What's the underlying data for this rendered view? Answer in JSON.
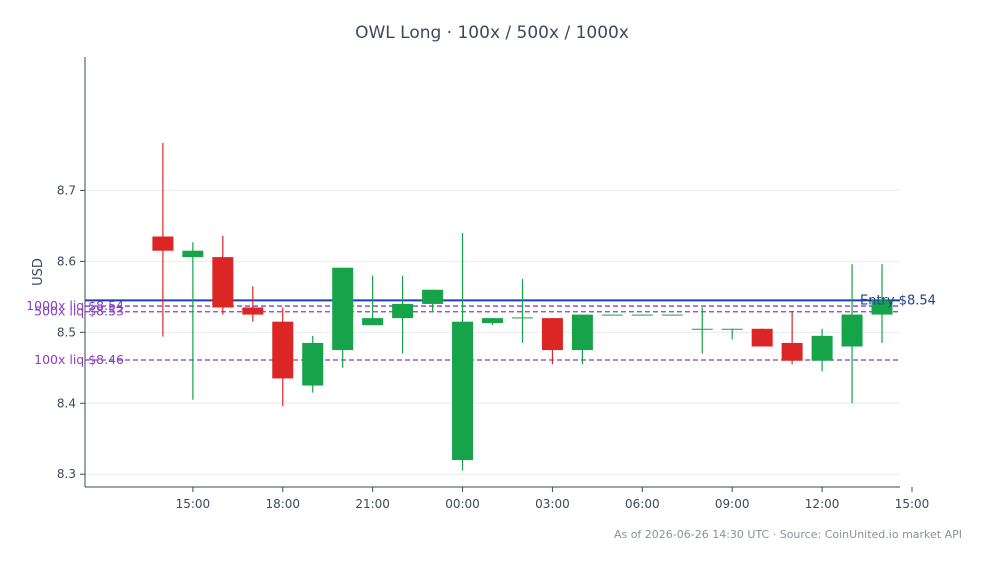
{
  "chart_data": {
    "type": "candlestick",
    "title": "OWL Long · 100x / 500x / 1000x",
    "ylabel": "USD",
    "ylim": [
      8.282,
      8.888
    ],
    "yticks": [
      8.3,
      8.4,
      8.5,
      8.6,
      8.7
    ],
    "xlim": [
      -6.6,
      20.6
    ],
    "xticks": [
      {
        "x": -3,
        "label": "15:00"
      },
      {
        "x": 0,
        "label": "18:00"
      },
      {
        "x": 3,
        "label": "21:00"
      },
      {
        "x": 6,
        "label": "00:00"
      },
      {
        "x": 9,
        "label": "03:00"
      },
      {
        "x": 12,
        "label": "06:00"
      },
      {
        "x": 15,
        "label": "09:00"
      },
      {
        "x": 18,
        "label": "12:00"
      },
      {
        "x": 21,
        "label": "15:00"
      }
    ],
    "grid": true,
    "colors": {
      "up": "#16a34a",
      "down": "#dc2626",
      "entry": "#1e40af",
      "liq": "#8a3fc4"
    },
    "candles": [
      {
        "x": -4,
        "open": 8.635,
        "high": 8.767,
        "low": 8.494,
        "close": 8.615
      },
      {
        "x": -3,
        "open": 8.606,
        "high": 8.627,
        "low": 8.405,
        "close": 8.615
      },
      {
        "x": -2,
        "open": 8.606,
        "high": 8.636,
        "low": 8.525,
        "close": 8.535
      },
      {
        "x": -1,
        "open": 8.535,
        "high": 8.565,
        "low": 8.515,
        "close": 8.525
      },
      {
        "x": 0,
        "open": 8.515,
        "high": 8.535,
        "low": 8.396,
        "close": 8.435
      },
      {
        "x": 1,
        "open": 8.425,
        "high": 8.495,
        "low": 8.415,
        "close": 8.485
      },
      {
        "x": 2,
        "open": 8.475,
        "high": 8.591,
        "low": 8.45,
        "close": 8.591
      },
      {
        "x": 3,
        "open": 8.51,
        "high": 8.58,
        "low": 8.51,
        "close": 8.52
      },
      {
        "x": 4,
        "open": 8.52,
        "high": 8.58,
        "low": 8.47,
        "close": 8.54
      },
      {
        "x": 5,
        "open": 8.54,
        "high": 8.56,
        "low": 8.53,
        "close": 8.56
      },
      {
        "x": 6,
        "open": 8.32,
        "high": 8.64,
        "low": 8.305,
        "close": 8.515
      },
      {
        "x": 7,
        "open": 8.513,
        "high": 8.52,
        "low": 8.51,
        "close": 8.52
      },
      {
        "x": 8,
        "open": 8.52,
        "high": 8.575,
        "low": 8.485,
        "close": 8.521
      },
      {
        "x": 9,
        "open": 8.52,
        "high": 8.52,
        "low": 8.455,
        "close": 8.475
      },
      {
        "x": 10,
        "open": 8.475,
        "high": 8.525,
        "low": 8.455,
        "close": 8.525
      },
      {
        "x": 11,
        "open": 8.524,
        "high": 8.525,
        "low": 8.524,
        "close": 8.525
      },
      {
        "x": 12,
        "open": 8.524,
        "high": 8.525,
        "low": 8.524,
        "close": 8.525
      },
      {
        "x": 13,
        "open": 8.524,
        "high": 8.525,
        "low": 8.524,
        "close": 8.525
      },
      {
        "x": 14,
        "open": 8.504,
        "high": 8.535,
        "low": 8.47,
        "close": 8.505
      },
      {
        "x": 15,
        "open": 8.504,
        "high": 8.505,
        "low": 8.49,
        "close": 8.505
      },
      {
        "x": 16,
        "open": 8.505,
        "high": 8.505,
        "low": 8.48,
        "close": 8.48
      },
      {
        "x": 17,
        "open": 8.485,
        "high": 8.53,
        "low": 8.455,
        "close": 8.46
      },
      {
        "x": 18,
        "open": 8.46,
        "high": 8.505,
        "low": 8.445,
        "close": 8.495
      },
      {
        "x": 19,
        "open": 8.48,
        "high": 8.596,
        "low": 8.4,
        "close": 8.525
      },
      {
        "x": 20,
        "open": 8.525,
        "high": 8.596,
        "low": 8.485,
        "close": 8.545
      }
    ],
    "hlines": [
      {
        "y": 8.545,
        "label": "Entry $8.54",
        "style": "solid",
        "label_side": "right"
      },
      {
        "y": 8.537,
        "label": "1000x liq $8.54",
        "style": "dashed",
        "label_side": "left"
      },
      {
        "y": 8.529,
        "label": "500x liq $8.53",
        "style": "dashed",
        "label_side": "left"
      },
      {
        "y": 8.461,
        "label": "100x liq $8.46",
        "style": "dashed",
        "label_side": "left"
      }
    ]
  },
  "footer": "As of 2026-06-26 14:30 UTC · Source: CoinUnited.io market API"
}
